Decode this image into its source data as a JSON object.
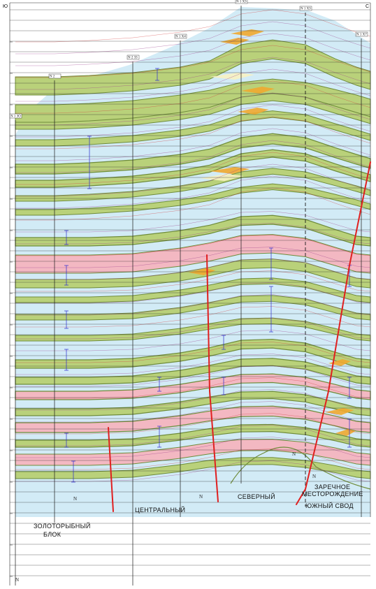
{
  "sides": {
    "south": "Ю",
    "north": "С"
  },
  "wells": [
    {
      "tag": "N 1 ЗО"
    },
    {
      "tag": "N 2"
    },
    {
      "tag": "N 2 ЗЗ"
    },
    {
      "tag": "N 1 Х4"
    },
    {
      "tag": "N 1 ХЗ"
    },
    {
      "tag": "N 1 ХЗ"
    },
    {
      "tag": "N 1 Х7"
    }
  ],
  "blocks": {
    "zolotorybny_1": "ЗОЛОТОРЫБНЫЙ",
    "zolotorybny_2": "БЛОК",
    "central": "ЦЕНТРАЛЬНЫЙ",
    "northern": "СЕВЕРНЫЙ",
    "zarechnoe_1": "ЗАРЕЧНОЕ",
    "zarechnoe_2": "МЕСТОРОЖДЕНИЕ",
    "south_arch": "ЮЖНЫЙ СВОД"
  },
  "basement_symbol": "N",
  "colors": {
    "background": "#d2ebf6",
    "green_layer": "#b9d17a",
    "green_edge": "#6f8c3a",
    "orange_layer": "#f0a830",
    "pink_layer": "#f3b8c2",
    "cream_layer": "#f7f2c2",
    "fault": "#e02020",
    "well_line": "#1a1a1a",
    "grid": "#2a2a2a",
    "marker": "#2b2bd0"
  }
}
